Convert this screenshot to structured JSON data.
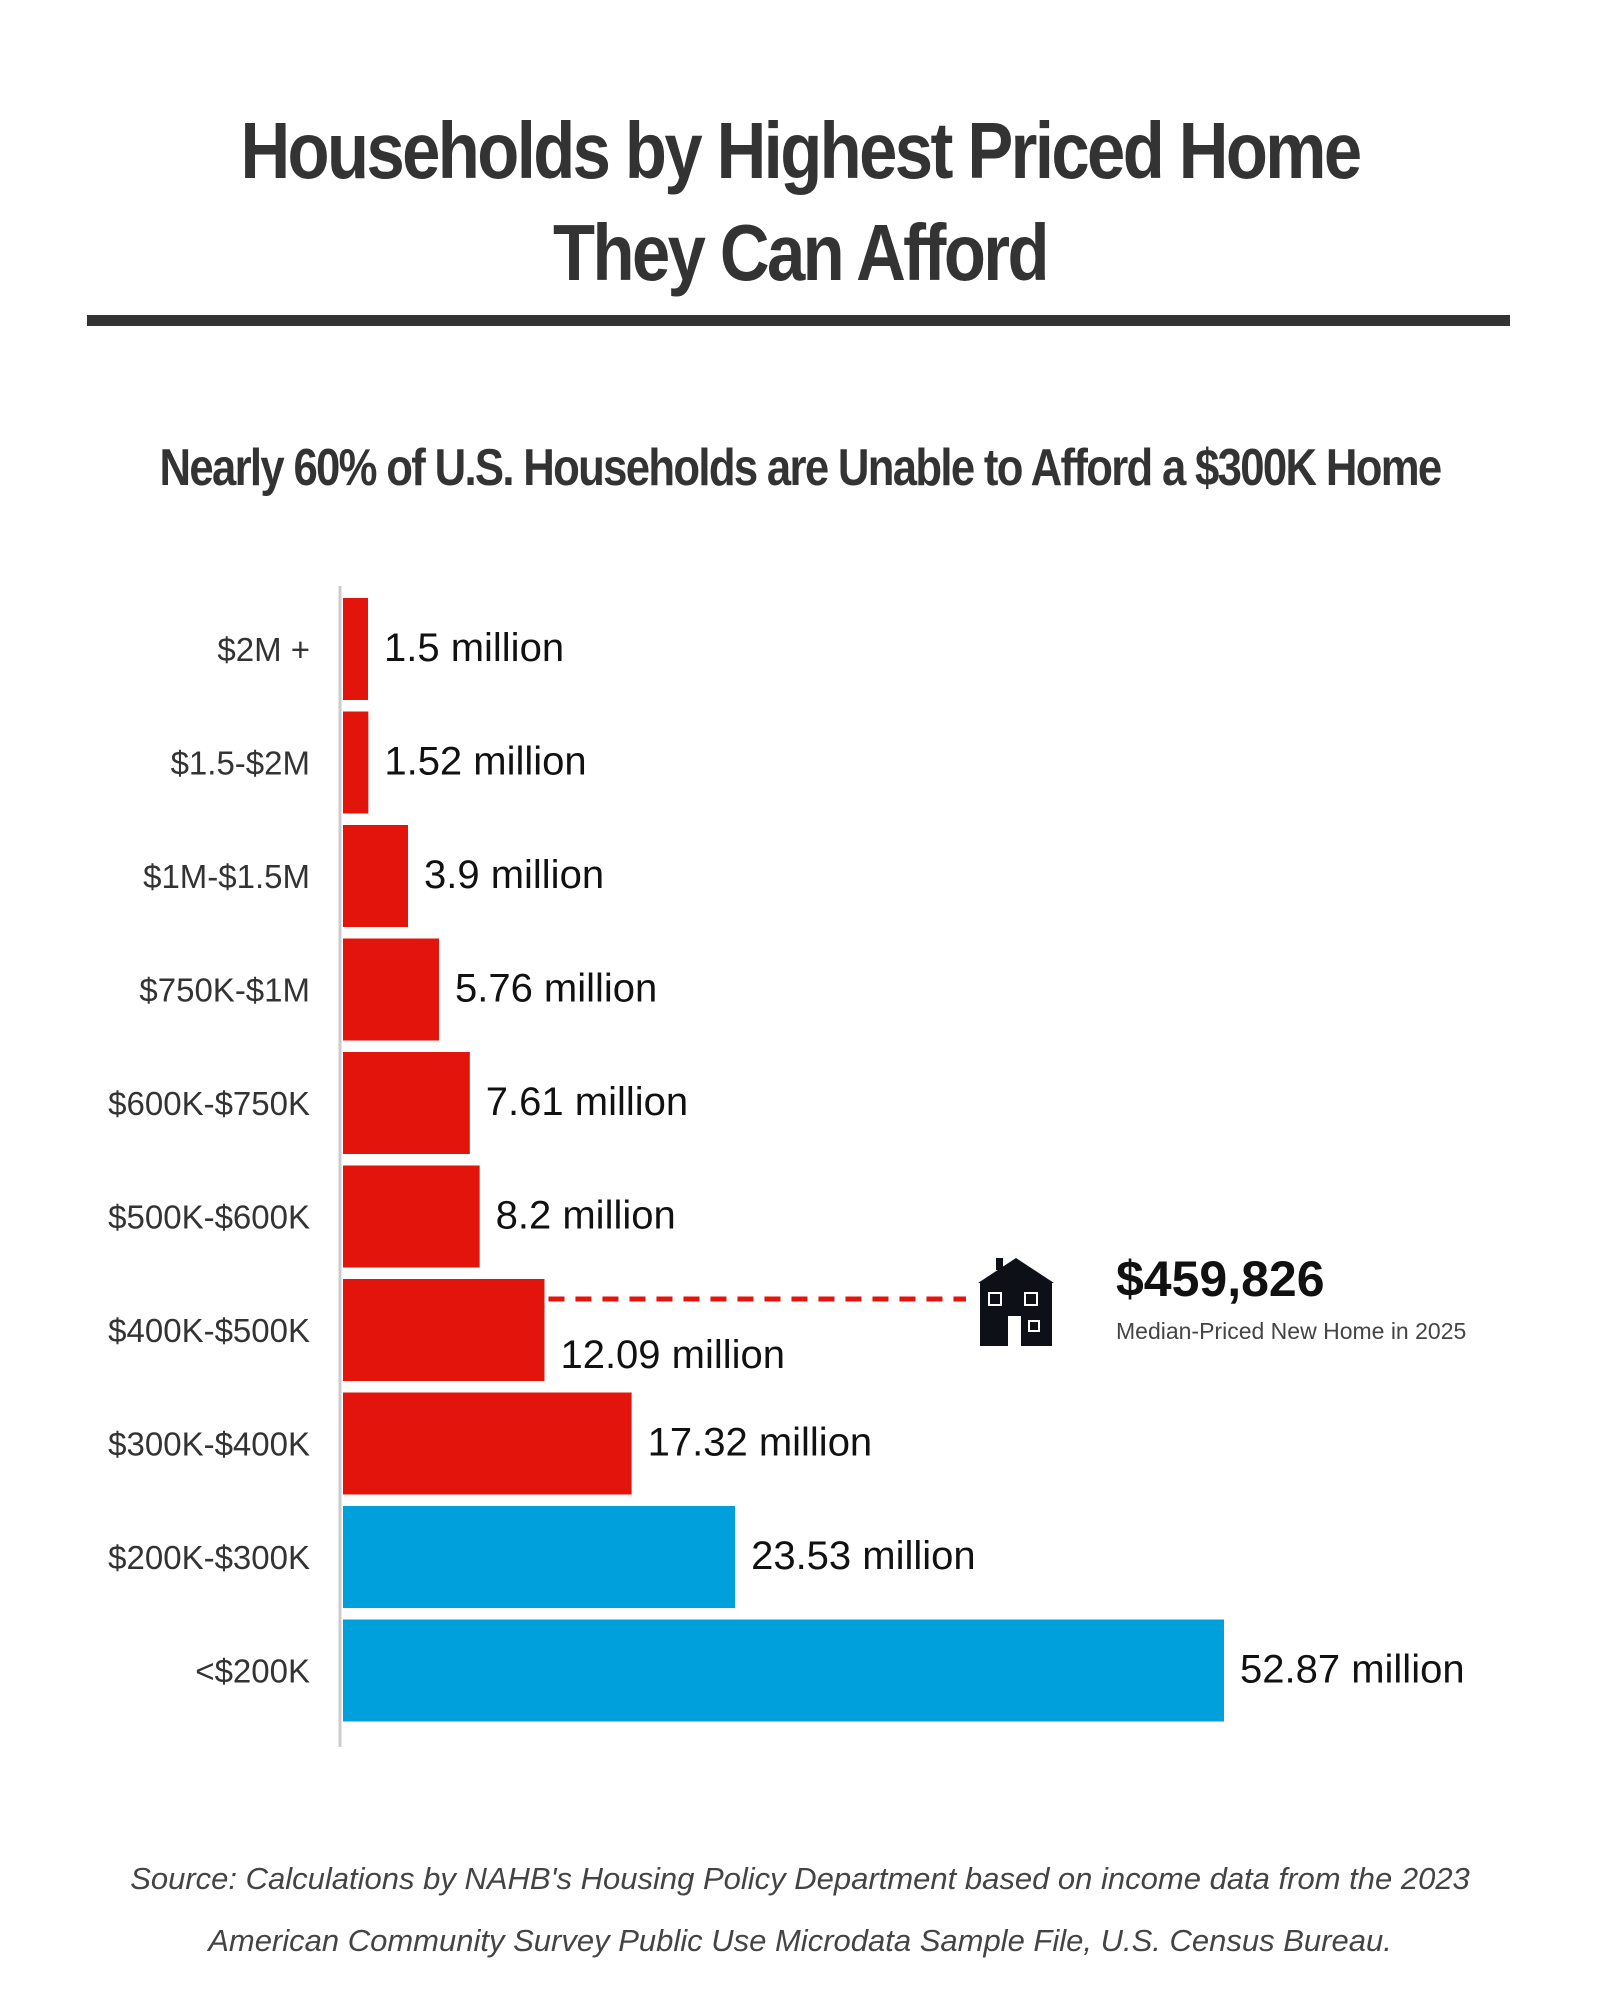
{
  "title": "Households by Highest Priced Home They Can Afford",
  "subtitle": "Nearly 60% of U.S. Households are Unable to Afford a $300K Home",
  "chart_data": {
    "type": "bar",
    "orientation": "horizontal",
    "categories": [
      "$2M +",
      "$1.5-$2M",
      "$1M-$1.5M",
      "$750K-$1M",
      "$600K-$750K",
      "$500K-$600K",
      "$400K-$500K",
      "$300K-$400K",
      "$200K-$300K",
      "<$200K"
    ],
    "values": [
      1.5,
      1.52,
      3.9,
      5.76,
      7.61,
      8.2,
      12.09,
      17.32,
      23.53,
      52.87
    ],
    "data_labels": [
      "1.5 million",
      "1.52 million",
      "3.9 million",
      "5.76 million",
      "7.61 million",
      "8.2 million",
      "12.09 million",
      "17.32 million",
      "23.53 million",
      "52.87 million"
    ],
    "bar_colors": [
      "#e3140b",
      "#e3140b",
      "#e3140b",
      "#e3140b",
      "#e3140b",
      "#e3140b",
      "#e3140b",
      "#e3140b",
      "#00a0dc",
      "#00a0dc"
    ],
    "unit": "million households",
    "grid": false,
    "annotation": {
      "category": "$400K-$500K",
      "value_label": "$459,826",
      "label": "Median-Priced New Home in 2025",
      "icon": "house-icon",
      "line_color": "#e3140b"
    }
  },
  "source": {
    "line1": "Source: Calculations by NAHB's Housing Policy Department based on income data from the 2023",
    "line2": "American Community Survey Public Use Microdata Sample File, U.S. Census Bureau."
  }
}
